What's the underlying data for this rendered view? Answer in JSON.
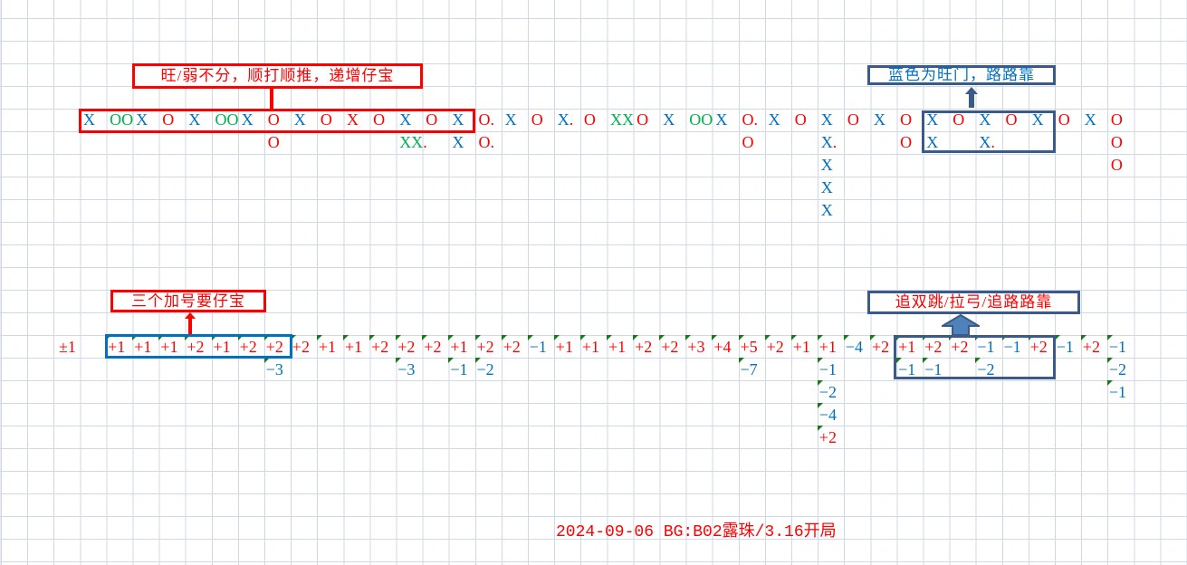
{
  "colors": {
    "blue": "#0070c0",
    "red": "#ff0000",
    "green": "#00b050",
    "dark_blue": "#3a5a8a",
    "arrow_fill": "#4f81bd"
  },
  "annotations": {
    "top_left": "旺/弱不分，顺打顺推，递增仔宝",
    "top_right": "蓝色为旺门，路路靠",
    "bottom_left": "三个加号要仔宝",
    "bottom_right": "追双跳/拉弓/追路路靠"
  },
  "bottom_start_label": "±1",
  "footer": "2024-09-06 BG:B02露珠/3.16开局",
  "top_rows": [
    [
      [
        "X",
        "blue"
      ],
      [
        "OO",
        "green"
      ],
      [
        "X",
        "blue"
      ],
      [
        "O",
        "red"
      ],
      [
        "X",
        "blue"
      ],
      [
        "OO",
        "green"
      ],
      [
        "X",
        "blue"
      ],
      [
        "O",
        "red"
      ],
      [
        "X",
        "blue"
      ],
      [
        "O",
        "red"
      ],
      [
        "X",
        "red"
      ],
      [
        "O",
        "red"
      ],
      [
        "X",
        "blue"
      ],
      [
        "O",
        "red"
      ],
      [
        "X",
        "blue"
      ],
      [
        "O.",
        "red"
      ],
      [
        "X",
        "blue"
      ],
      [
        "O",
        "red"
      ],
      [
        "X.",
        "blue"
      ],
      [
        "O",
        "red"
      ],
      [
        "XX",
        "green"
      ],
      [
        "O",
        "red"
      ],
      [
        "X",
        "blue"
      ],
      [
        "OO",
        "green"
      ],
      [
        "X",
        "blue"
      ],
      [
        "O.",
        "red"
      ],
      [
        "X",
        "blue"
      ],
      [
        "O",
        "red"
      ],
      [
        "X",
        "blue"
      ],
      [
        "O",
        "red"
      ],
      [
        "X",
        "blue"
      ],
      [
        "O",
        "red"
      ],
      [
        "X",
        "blue"
      ],
      [
        "O",
        "red"
      ],
      [
        "X",
        "blue"
      ],
      [
        "O",
        "red"
      ],
      [
        "X",
        "blue"
      ],
      [
        "O",
        "red"
      ],
      [
        "X",
        "blue"
      ],
      [
        "O",
        "red"
      ]
    ],
    [
      null,
      null,
      null,
      null,
      null,
      null,
      null,
      [
        "O",
        "red"
      ],
      null,
      null,
      null,
      null,
      [
        "XX.",
        "green"
      ],
      null,
      [
        "X",
        "blue"
      ],
      [
        "O.",
        "red"
      ],
      null,
      null,
      null,
      null,
      null,
      null,
      null,
      null,
      null,
      [
        "O",
        "red"
      ],
      null,
      null,
      [
        "X.",
        "blue"
      ],
      null,
      null,
      [
        "O",
        "red"
      ],
      [
        "X",
        "blue"
      ],
      null,
      [
        "X.",
        "blue"
      ],
      null,
      null,
      null,
      null,
      [
        "O",
        "red"
      ]
    ],
    [
      null,
      null,
      null,
      null,
      null,
      null,
      null,
      null,
      null,
      null,
      null,
      null,
      null,
      null,
      null,
      null,
      null,
      null,
      null,
      null,
      null,
      null,
      null,
      null,
      null,
      null,
      null,
      null,
      [
        "X",
        "blue"
      ],
      null,
      null,
      null,
      null,
      null,
      null,
      null,
      null,
      null,
      null,
      [
        "O",
        "red"
      ]
    ],
    [
      null,
      null,
      null,
      null,
      null,
      null,
      null,
      null,
      null,
      null,
      null,
      null,
      null,
      null,
      null,
      null,
      null,
      null,
      null,
      null,
      null,
      null,
      null,
      null,
      null,
      null,
      null,
      null,
      [
        "X",
        "blue"
      ],
      null,
      null,
      null,
      null,
      null,
      null,
      null,
      null,
      null,
      null,
      null
    ],
    [
      null,
      null,
      null,
      null,
      null,
      null,
      null,
      null,
      null,
      null,
      null,
      null,
      null,
      null,
      null,
      null,
      null,
      null,
      null,
      null,
      null,
      null,
      null,
      null,
      null,
      null,
      null,
      null,
      [
        "X",
        "blue"
      ],
      null,
      null,
      null,
      null,
      null,
      null,
      null,
      null,
      null,
      null,
      null
    ]
  ],
  "bottom_rows": [
    [
      null,
      "+1",
      "+1",
      "+1",
      "+2",
      "+1",
      "+2",
      "+2",
      "+2",
      "+1",
      "+1",
      "+2",
      "+2",
      "+2",
      "+1",
      "+2",
      "+2",
      "-1",
      "+1",
      "+1",
      "+1",
      "+2",
      "+2",
      "+3",
      "+4",
      "+5",
      "+2",
      "+1",
      "+1",
      "-4",
      "+2",
      "+1",
      "+2",
      "+2",
      "-1",
      "-1",
      "+2",
      "-1",
      "+2",
      "-1"
    ],
    [
      null,
      null,
      null,
      null,
      null,
      null,
      null,
      "-3",
      null,
      null,
      null,
      null,
      "-3",
      null,
      "-1",
      "-2",
      null,
      null,
      null,
      null,
      null,
      null,
      null,
      null,
      null,
      "-7",
      null,
      null,
      "-1",
      null,
      null,
      "-1",
      "-1",
      null,
      "-2",
      null,
      null,
      null,
      null,
      "-2"
    ],
    [
      null,
      null,
      null,
      null,
      null,
      null,
      null,
      null,
      null,
      null,
      null,
      null,
      null,
      null,
      null,
      null,
      null,
      null,
      null,
      null,
      null,
      null,
      null,
      null,
      null,
      null,
      null,
      null,
      "-2",
      null,
      null,
      null,
      null,
      null,
      null,
      null,
      null,
      null,
      null,
      "-1"
    ],
    [
      null,
      null,
      null,
      null,
      null,
      null,
      null,
      null,
      null,
      null,
      null,
      null,
      null,
      null,
      null,
      null,
      null,
      null,
      null,
      null,
      null,
      null,
      null,
      null,
      null,
      null,
      null,
      null,
      "-4",
      null,
      null,
      null,
      null,
      null,
      null,
      null,
      null,
      null,
      null,
      null
    ],
    [
      null,
      null,
      null,
      null,
      null,
      null,
      null,
      null,
      null,
      null,
      null,
      null,
      null,
      null,
      null,
      null,
      null,
      null,
      null,
      null,
      null,
      null,
      null,
      null,
      null,
      null,
      null,
      null,
      "+2",
      null,
      null,
      null,
      null,
      null,
      null,
      null,
      null,
      null,
      null,
      null
    ]
  ]
}
